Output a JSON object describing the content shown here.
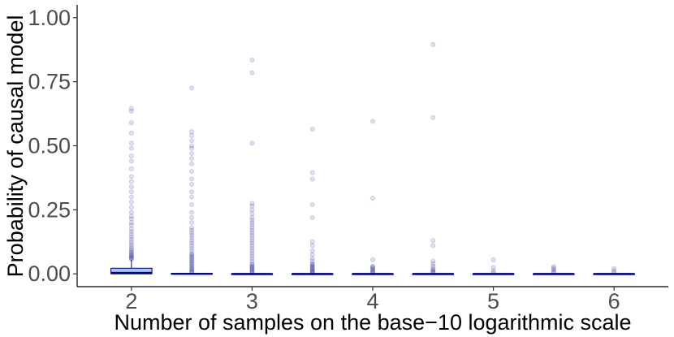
{
  "chart_data": {
    "type": "box",
    "title": "",
    "xlabel": "Number of samples on the base−10 logarithmic scale",
    "ylabel": "Probability of causal model",
    "xlim": [
      1.55,
      6.45
    ],
    "ylim": [
      -0.05,
      1.05
    ],
    "x_ticks": [
      {
        "value": 2,
        "label": "2"
      },
      {
        "value": 3,
        "label": "3"
      },
      {
        "value": 4,
        "label": "4"
      },
      {
        "value": 5,
        "label": "5"
      },
      {
        "value": 6,
        "label": "6"
      }
    ],
    "y_ticks": [
      {
        "value": 0.0,
        "label": "0.00"
      },
      {
        "value": 0.25,
        "label": "0.25"
      },
      {
        "value": 0.5,
        "label": "0.50"
      },
      {
        "value": 0.75,
        "label": "0.75"
      },
      {
        "value": 1.0,
        "label": "1.00"
      }
    ],
    "grid": false,
    "box_fill": "#a6c8f0",
    "box_stroke": "#00008b",
    "outlier_color": "#00008b",
    "boxes": [
      {
        "x": 2.0,
        "q1": 0.0,
        "median": 0.004,
        "q3": 0.022,
        "whisker_low": 0.0,
        "whisker_high": 0.055,
        "outliers": [
          0.057,
          0.06,
          0.063,
          0.066,
          0.07,
          0.074,
          0.078,
          0.083,
          0.088,
          0.094,
          0.1,
          0.108,
          0.116,
          0.125,
          0.135,
          0.145,
          0.155,
          0.165,
          0.175,
          0.19,
          0.2,
          0.215,
          0.225,
          0.24,
          0.26,
          0.28,
          0.3,
          0.32,
          0.34,
          0.36,
          0.38,
          0.41,
          0.44,
          0.46,
          0.49,
          0.51,
          0.55,
          0.59,
          0.635,
          0.645
        ]
      },
      {
        "x": 2.5,
        "q1": 0.0,
        "median": 0.0,
        "q3": 0.002,
        "whisker_low": 0.0,
        "whisker_high": 0.004,
        "outliers": [
          0.005,
          0.008,
          0.012,
          0.016,
          0.02,
          0.025,
          0.03,
          0.035,
          0.04,
          0.045,
          0.05,
          0.055,
          0.06,
          0.065,
          0.07,
          0.075,
          0.08,
          0.09,
          0.1,
          0.11,
          0.12,
          0.13,
          0.14,
          0.15,
          0.16,
          0.17,
          0.18,
          0.2,
          0.22,
          0.24,
          0.27,
          0.3,
          0.32,
          0.35,
          0.37,
          0.4,
          0.43,
          0.45,
          0.47,
          0.49,
          0.5,
          0.52,
          0.54,
          0.555,
          0.725
        ]
      },
      {
        "x": 3.0,
        "q1": 0.0,
        "median": 0.0,
        "q3": 0.0,
        "whisker_low": 0.0,
        "whisker_high": 0.0,
        "outliers": [
          0.003,
          0.006,
          0.01,
          0.014,
          0.018,
          0.022,
          0.026,
          0.03,
          0.035,
          0.04,
          0.05,
          0.06,
          0.07,
          0.08,
          0.09,
          0.1,
          0.11,
          0.12,
          0.13,
          0.14,
          0.15,
          0.16,
          0.17,
          0.18,
          0.19,
          0.2,
          0.21,
          0.22,
          0.235,
          0.25,
          0.265,
          0.275,
          0.51,
          0.785,
          0.835
        ]
      },
      {
        "x": 3.5,
        "q1": 0.0,
        "median": 0.0,
        "q3": 0.0,
        "whisker_low": 0.0,
        "whisker_high": 0.0,
        "outliers": [
          0.003,
          0.006,
          0.009,
          0.012,
          0.016,
          0.02,
          0.024,
          0.028,
          0.032,
          0.036,
          0.04,
          0.05,
          0.06,
          0.075,
          0.09,
          0.11,
          0.125,
          0.22,
          0.27,
          0.37,
          0.395,
          0.565
        ]
      },
      {
        "x": 4.0,
        "q1": 0.0,
        "median": 0.0,
        "q3": 0.0,
        "whisker_low": 0.0,
        "whisker_high": 0.0,
        "outliers": [
          0.003,
          0.006,
          0.01,
          0.014,
          0.018,
          0.022,
          0.026,
          0.03,
          0.055,
          0.295,
          0.595
        ]
      },
      {
        "x": 4.5,
        "q1": 0.0,
        "median": 0.0,
        "q3": 0.0,
        "whisker_low": 0.0,
        "whisker_high": 0.0,
        "outliers": [
          0.004,
          0.008,
          0.012,
          0.016,
          0.02,
          0.03,
          0.04,
          0.05,
          0.11,
          0.13,
          0.61,
          0.895
        ]
      },
      {
        "x": 5.0,
        "q1": 0.0,
        "median": 0.0,
        "q3": 0.0,
        "whisker_low": 0.0,
        "whisker_high": 0.0,
        "outliers": [
          0.005,
          0.012,
          0.025,
          0.055
        ]
      },
      {
        "x": 5.5,
        "q1": 0.0,
        "median": 0.0,
        "q3": 0.0,
        "whisker_low": 0.0,
        "whisker_high": 0.0,
        "outliers": [
          0.005,
          0.01,
          0.016,
          0.022,
          0.028
        ]
      },
      {
        "x": 6.0,
        "q1": 0.0,
        "median": 0.0,
        "q3": 0.0,
        "whisker_low": 0.0,
        "whisker_high": 0.0,
        "outliers": [
          0.005,
          0.012,
          0.02
        ]
      }
    ]
  }
}
